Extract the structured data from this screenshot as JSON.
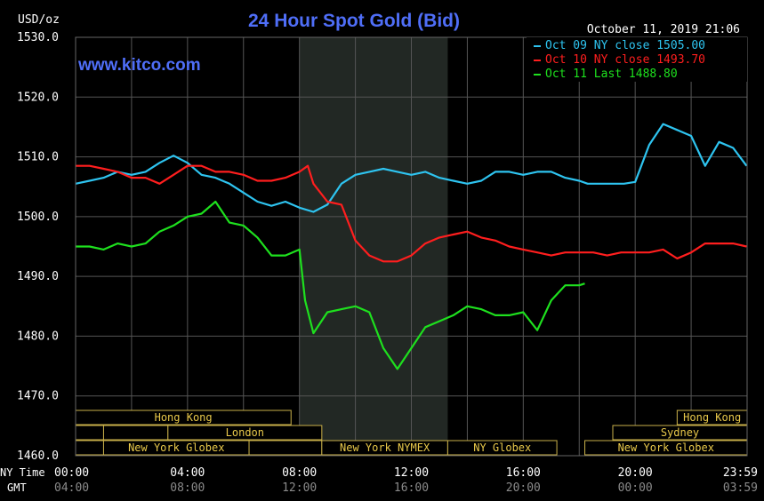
{
  "chart_data": {
    "type": "line",
    "title": "24 Hour Spot Gold (Bid)",
    "ylabel": "USD/oz",
    "datestamp": "October 11, 2019 21:06",
    "watermark": "www.kitco.com",
    "ylim": [
      1460,
      1530
    ],
    "yticks": [
      1460,
      1470,
      1480,
      1490,
      1500,
      1510,
      1520,
      1530
    ],
    "ytick_labels": [
      "1460.0",
      "1470.0",
      "1480.0",
      "1490.0",
      "1500.0",
      "1510.0",
      "1520.0",
      "1530.0"
    ],
    "xlim": [
      0,
      24
    ],
    "xticks": [
      0,
      4,
      8,
      12,
      16,
      20,
      23.983
    ],
    "ny_time_label": "NY Time",
    "gmt_label": "GMT",
    "ny_tick_labels": [
      "00:00",
      "04:00",
      "08:00",
      "12:00",
      "16:00",
      "20:00",
      "23:59"
    ],
    "gmt_tick_labels": [
      "04:00",
      "08:00",
      "12:00",
      "16:00",
      "20:00",
      "00:00",
      "03:59"
    ],
    "grid": true,
    "legend_position": "top-right",
    "highlight_band": [
      8,
      13.3
    ],
    "series": [
      {
        "name": "Oct 09 NY close 1505.00",
        "color": "#2ec4f0",
        "x": [
          0,
          0.5,
          1,
          1.5,
          2,
          2.5,
          3,
          3.5,
          4,
          4.5,
          5,
          5.5,
          6,
          6.5,
          7,
          7.5,
          8,
          8.5,
          9,
          9.5,
          10,
          10.5,
          11,
          11.5,
          12,
          12.5,
          13,
          13.5,
          14,
          14.5,
          15,
          15.5,
          16,
          16.5,
          17,
          17.5,
          18,
          18.3,
          18.6,
          19,
          19.3,
          19.6,
          20,
          20.5,
          21,
          21.5,
          22,
          22.5,
          23,
          23.5,
          23.98
        ],
        "values": [
          1505.5,
          1506,
          1506.5,
          1507.5,
          1507,
          1507.5,
          1509,
          1510.2,
          1509,
          1507,
          1506.5,
          1505.5,
          1504,
          1502.5,
          1501.8,
          1502.5,
          1501.5,
          1500.8,
          1502,
          1505.5,
          1507,
          1507.5,
          1508,
          1507.5,
          1507,
          1507.5,
          1506.5,
          1506,
          1505.5,
          1506,
          1507.5,
          1507.5,
          1507,
          1507.5,
          1507.5,
          1506.5,
          1506,
          1505.5,
          1505.5,
          1505.5,
          1505.5,
          1505.5,
          1505.8,
          1512,
          1515.5,
          1514.5,
          1513.5,
          1508.5,
          1512.5,
          1511.5,
          1508.5
        ]
      },
      {
        "name": "Oct 10 NY close 1493.70",
        "color": "#ff1e1e",
        "x": [
          0,
          0.5,
          1,
          1.5,
          2,
          2.5,
          3,
          3.5,
          4,
          4.5,
          5,
          5.5,
          6,
          6.5,
          7,
          7.5,
          8,
          8.3,
          8.5,
          9,
          9.5,
          10,
          10.5,
          11,
          11.5,
          12,
          12.5,
          13,
          13.5,
          14,
          14.5,
          15,
          15.5,
          16,
          16.5,
          17,
          17.5,
          18,
          18.5,
          19,
          19.5,
          20,
          20.5,
          21,
          21.5,
          22,
          22.5,
          23,
          23.5,
          23.98
        ],
        "values": [
          1508.5,
          1508.5,
          1508,
          1507.5,
          1506.5,
          1506.5,
          1505.5,
          1507,
          1508.5,
          1508.5,
          1507.5,
          1507.5,
          1507,
          1506,
          1506,
          1506.5,
          1507.5,
          1508.5,
          1505.5,
          1502.5,
          1502,
          1496,
          1493.5,
          1492.5,
          1492.5,
          1493.5,
          1495.5,
          1496.5,
          1497,
          1497.5,
          1496.5,
          1496,
          1495,
          1494.5,
          1494,
          1493.5,
          1494,
          1494,
          1494,
          1493.5,
          1494,
          1494,
          1494,
          1494.5,
          1493,
          1494,
          1495.5,
          1495.5,
          1495.5,
          1495
        ]
      },
      {
        "name": "Oct 11 Last 1488.80",
        "color": "#1ee01e",
        "x": [
          0,
          0.5,
          1,
          1.5,
          2,
          2.5,
          3,
          3.5,
          4,
          4.5,
          5,
          5.5,
          6,
          6.5,
          7,
          7.5,
          8,
          8.2,
          8.5,
          9,
          9.5,
          10,
          10.5,
          11,
          11.5,
          12,
          12.5,
          13,
          13.5,
          14,
          14.5,
          15,
          15.5,
          16,
          16.5,
          17,
          17.5,
          18,
          18.2
        ],
        "values": [
          1495,
          1495,
          1494.5,
          1495.5,
          1495,
          1495.5,
          1497.5,
          1498.5,
          1500,
          1500.5,
          1502.5,
          1499,
          1498.5,
          1496.5,
          1493.5,
          1493.5,
          1494.5,
          1486,
          1480.5,
          1484,
          1484.5,
          1485,
          1484,
          1478,
          1474.5,
          1478,
          1481.5,
          1482.5,
          1483.5,
          1485,
          1484.5,
          1483.5,
          1483.5,
          1484,
          1481,
          1486,
          1488.5,
          1488.5,
          1488.8
        ]
      }
    ],
    "session_bars": [
      {
        "label": "Hong Kong",
        "start": 0,
        "end": 7.7,
        "row": 0
      },
      {
        "label": "Hong Kong",
        "start": 21.5,
        "end": 24,
        "row": 0
      },
      {
        "label": "",
        "start": 0,
        "end": 1,
        "row": 1
      },
      {
        "label": "",
        "start": 1,
        "end": 3.3,
        "row": 1
      },
      {
        "label": "London",
        "start": 3.3,
        "end": 8.8,
        "row": 1
      },
      {
        "label": "Sydney",
        "start": 19.2,
        "end": 24,
        "row": 1
      },
      {
        "label": "",
        "start": 0,
        "end": 1,
        "row": 2
      },
      {
        "label": "New York Globex",
        "start": 1,
        "end": 6.2,
        "row": 2
      },
      {
        "label": "",
        "start": 6.2,
        "end": 8.8,
        "row": 2
      },
      {
        "label": "New York NYMEX",
        "start": 8.8,
        "end": 13.3,
        "row": 2
      },
      {
        "label": "NY Globex",
        "start": 13.3,
        "end": 17.2,
        "row": 2
      },
      {
        "label": "New York Globex",
        "start": 18.2,
        "end": 24,
        "row": 2
      }
    ]
  }
}
